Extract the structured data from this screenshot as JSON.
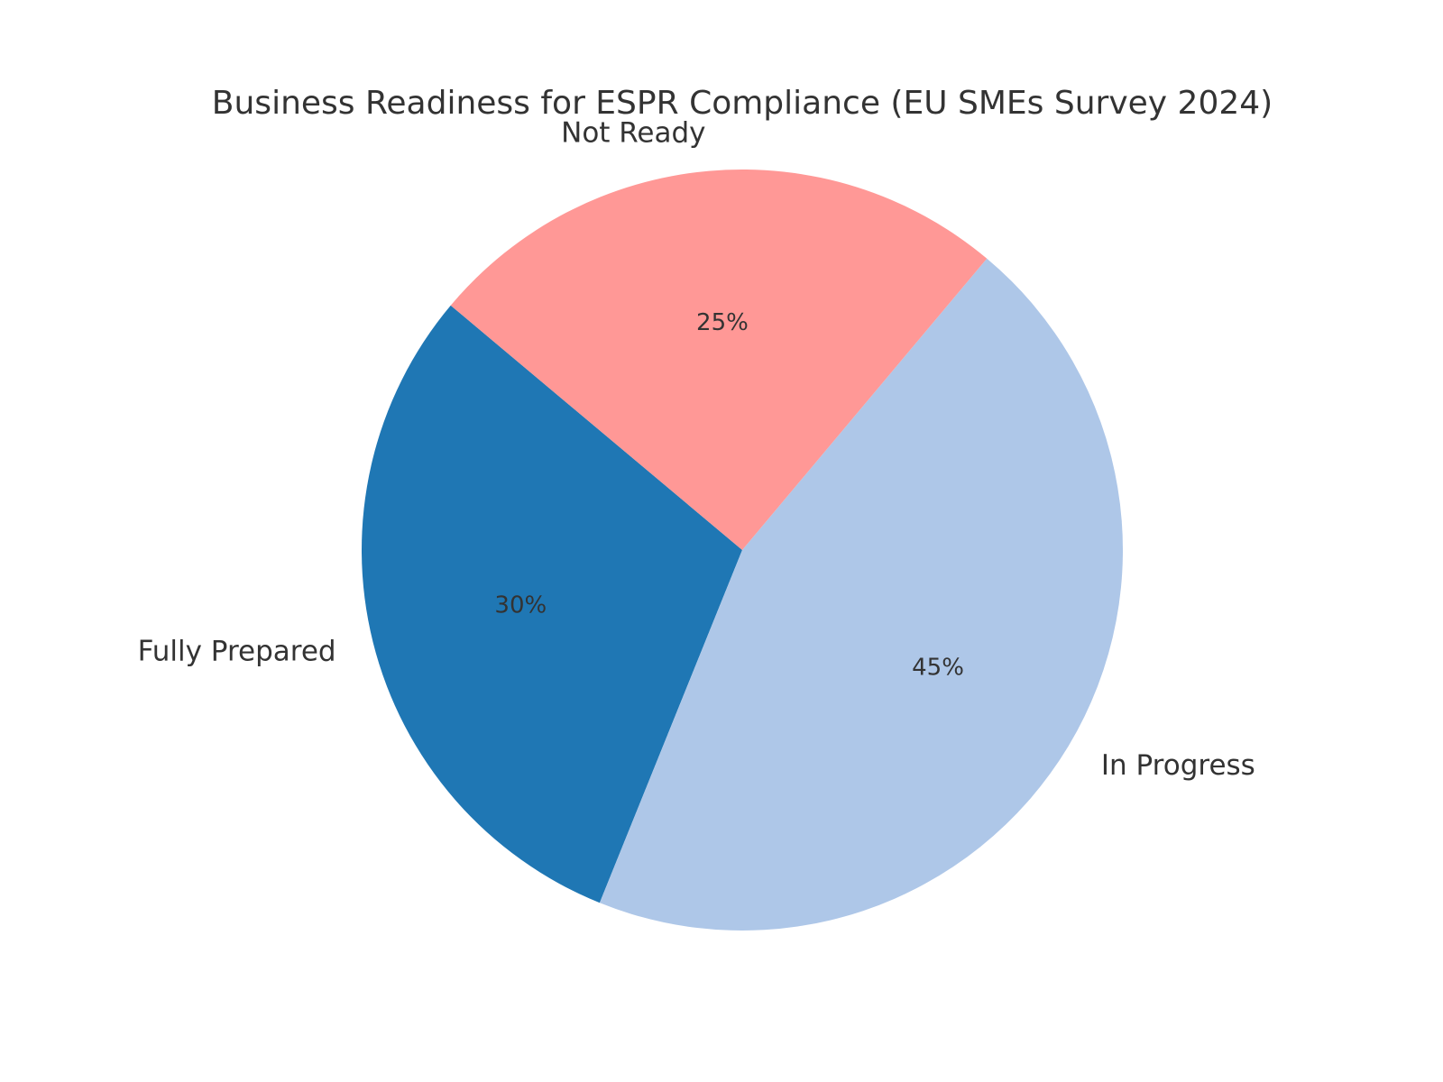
{
  "chart_data": {
    "type": "pie",
    "title": "Business Readiness for ESPR Compliance (EU SMEs Survey 2024)",
    "slices": [
      {
        "label": "Fully Prepared",
        "value": 30,
        "pct_label": "30%",
        "color": "#1f77b4"
      },
      {
        "label": "In Progress",
        "value": 45,
        "pct_label": "45%",
        "color": "#aec7e8"
      },
      {
        "label": "Not Ready",
        "value": 25,
        "pct_label": "25%",
        "color": "#ff9896"
      }
    ],
    "start_angle_deg": 140,
    "direction": "counterclockwise",
    "legend": "none"
  }
}
